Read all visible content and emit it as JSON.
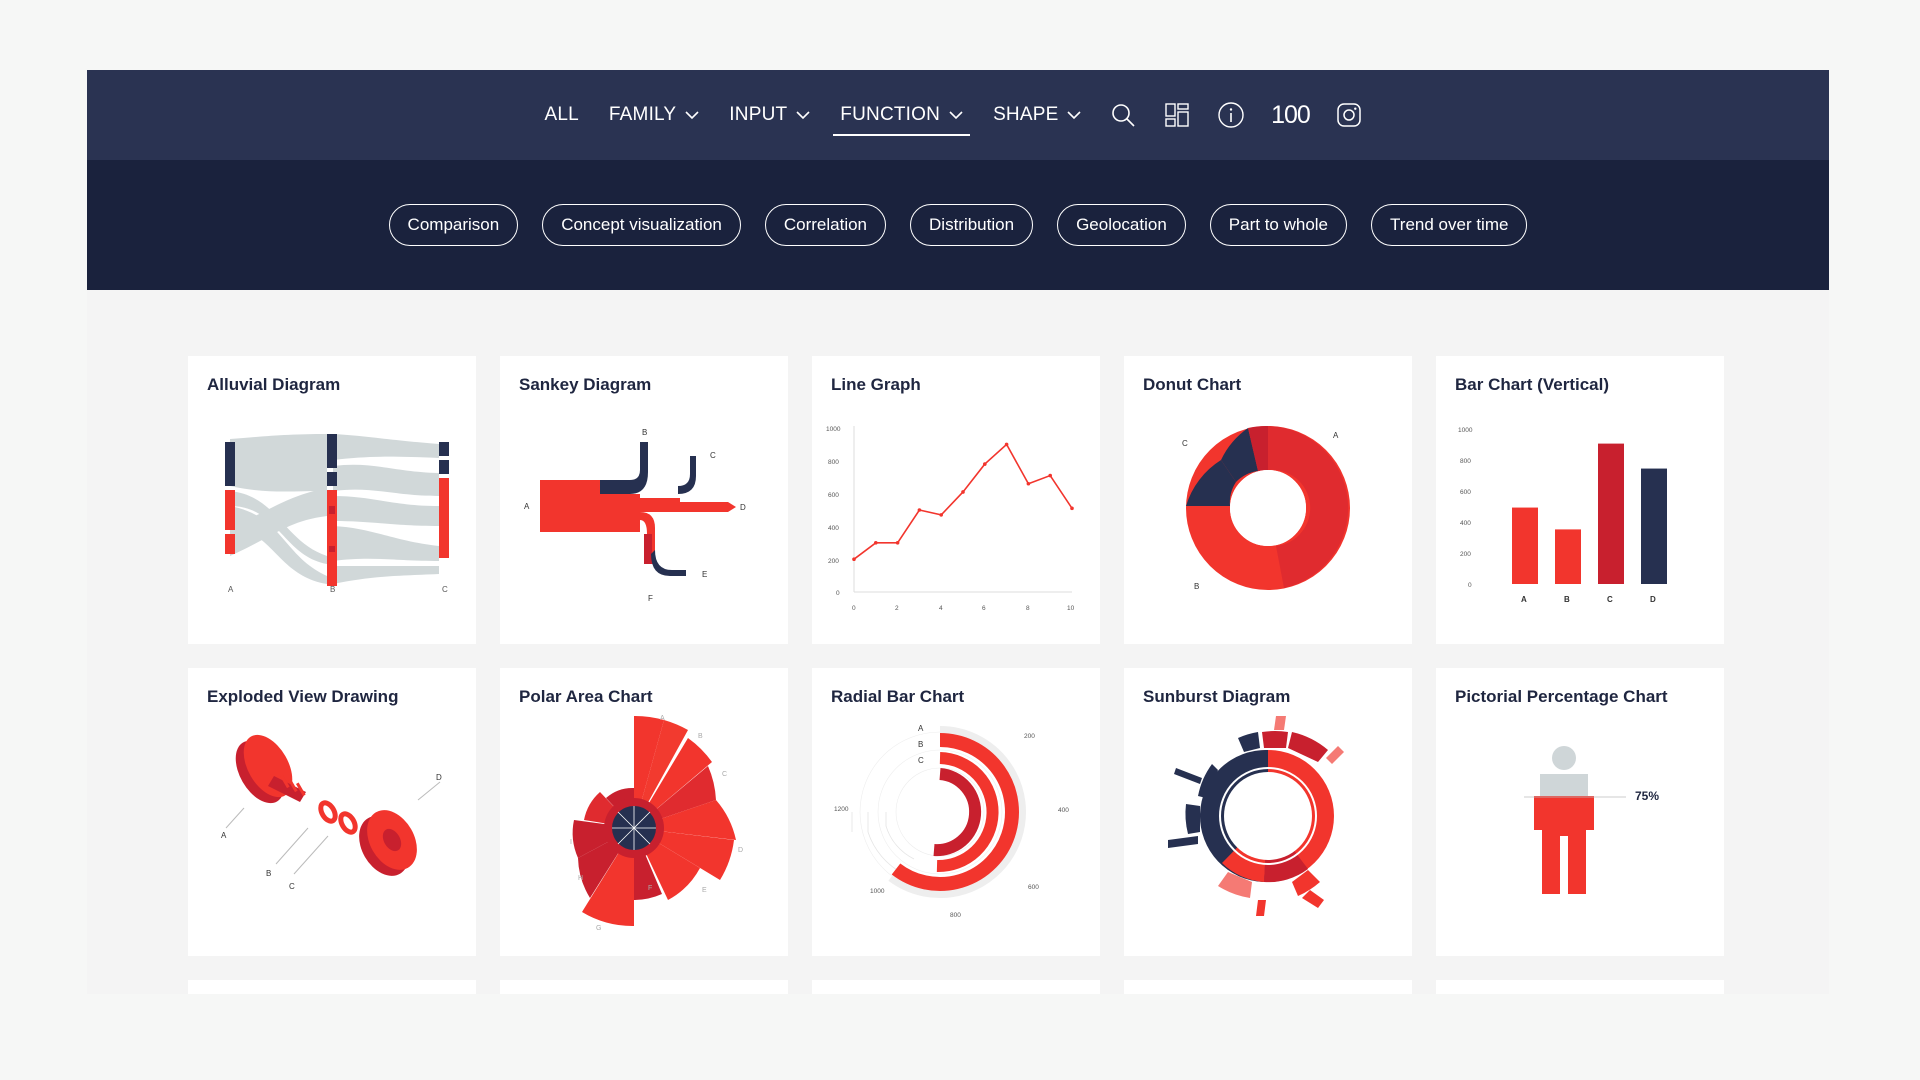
{
  "nav": {
    "items": [
      {
        "label": "ALL",
        "dropdown": false,
        "active": false
      },
      {
        "label": "FAMILY",
        "dropdown": true,
        "active": false
      },
      {
        "label": "INPUT",
        "dropdown": true,
        "active": false
      },
      {
        "label": "FUNCTION",
        "dropdown": true,
        "active": true
      },
      {
        "label": "SHAPE",
        "dropdown": true,
        "active": false
      }
    ],
    "icons": [
      "search-icon",
      "grid-layout-icon",
      "info-icon",
      "100-icon",
      "instagram-icon"
    ],
    "icon_100_text": "100"
  },
  "filters": [
    "Comparison",
    "Concept visualization",
    "Correlation",
    "Distribution",
    "Geolocation",
    "Part to whole",
    "Trend over time"
  ],
  "colors": {
    "nav": "#2a3352",
    "subnav": "#1a223d",
    "red": "#f2352d",
    "darkred": "#c8202e",
    "navy": "#263050",
    "grey": "#cfd6d8"
  },
  "cards": [
    {
      "title": "Alluvial Diagram",
      "labels": [
        "A",
        "B",
        "C"
      ]
    },
    {
      "title": "Sankey Diagram",
      "labels": [
        "A",
        "B",
        "C",
        "D",
        "E",
        "F"
      ]
    },
    {
      "title": "Line Graph",
      "y_ticks": [
        "1000",
        "800",
        "600",
        "400",
        "200",
        "0"
      ],
      "x_ticks": [
        "0",
        "2",
        "4",
        "6",
        "8",
        "10"
      ]
    },
    {
      "title": "Donut Chart",
      "labels": [
        "A",
        "B",
        "C"
      ]
    },
    {
      "title": "Bar Chart (Vertical)",
      "y_ticks": [
        "1000",
        "800",
        "600",
        "400",
        "200",
        "0"
      ],
      "x_ticks": [
        "A",
        "B",
        "C",
        "D"
      ]
    },
    {
      "title": "Exploded View Drawing",
      "labels": [
        "A",
        "B",
        "C",
        "D"
      ]
    },
    {
      "title": "Polar Area Chart",
      "labels": [
        "A",
        "B",
        "C",
        "D",
        "E",
        "F",
        "G",
        "H",
        "I"
      ]
    },
    {
      "title": "Radial Bar Chart",
      "labels": [
        "A",
        "B",
        "C"
      ],
      "ticks": [
        "200",
        "400",
        "600",
        "800",
        "1000",
        "1200"
      ]
    },
    {
      "title": "Sunburst Diagram"
    },
    {
      "title": "Pictorial Percentage Chart",
      "value_label": "75%"
    }
  ],
  "chart_data": [
    {
      "type": "line",
      "x": [
        0,
        1,
        2,
        3,
        4,
        5,
        6,
        7,
        8,
        9,
        10
      ],
      "y": [
        200,
        300,
        300,
        500,
        470,
        610,
        780,
        900,
        660,
        710,
        510
      ],
      "xlim": [
        0,
        10
      ],
      "ylim": [
        0,
        1000
      ]
    },
    {
      "type": "bar",
      "categories": [
        "A",
        "B",
        "C",
        "D"
      ],
      "values": [
        490,
        350,
        900,
        740
      ],
      "ylim": [
        0,
        1000
      ]
    }
  ]
}
